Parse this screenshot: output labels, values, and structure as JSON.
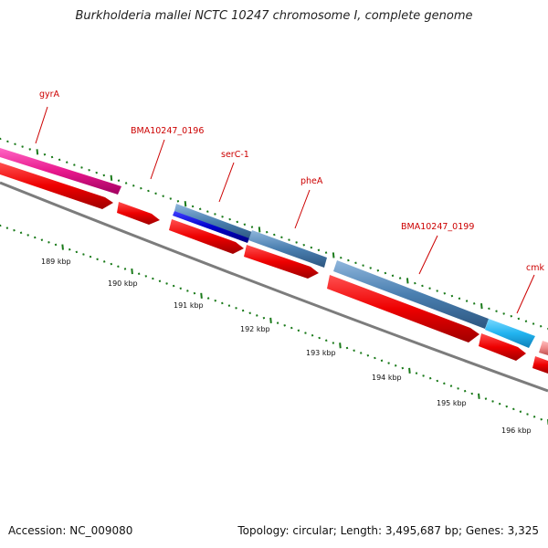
{
  "title": "Burkholderia mallei NCTC 10247 chromosome I, complete genome",
  "footer": {
    "accession": "Accession: NC_009080",
    "stats": "Topology: circular; Length: 3,495,687 bp; Genes: 3,325"
  },
  "colors": {
    "gyrA": "#e8188c",
    "cds": "#ee0000",
    "gene_blue": "#4a7fb0",
    "gene_navy": "#0000cc",
    "gene_cyan": "#22b4f0",
    "gene_pink": "#ef8a8a",
    "tick": "#1a7a1a",
    "label": "#cc0000",
    "backbone": "#808080"
  },
  "genes": [
    {
      "name": "gyrA"
    },
    {
      "name": "BMA10247_0196"
    },
    {
      "name": "serC-1"
    },
    {
      "name": "pheA"
    },
    {
      "name": "BMA10247_0199"
    },
    {
      "name": "cmk"
    }
  ],
  "scale_labels": [
    "189 kbp",
    "190 kbp",
    "191 kbp",
    "192 kbp",
    "193 kbp",
    "194 kbp",
    "195 kbp",
    "196 kbp"
  ]
}
